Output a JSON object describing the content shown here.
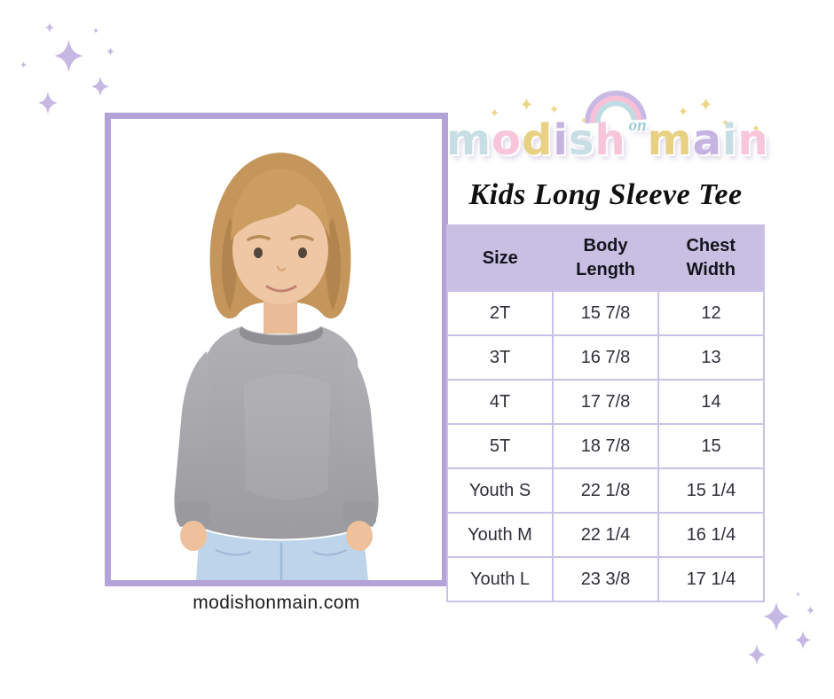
{
  "page": {
    "background": "#ffffff",
    "website": "modishonmain.com"
  },
  "theme": {
    "frame": "#b3a3d8",
    "header_bg": "#c8bfe3",
    "cell_border": "#cac1e6",
    "sparkle": "#c5b9e4",
    "gold": "#ecd584",
    "rainbow1": "#c9b8e4",
    "rainbow2": "#f7bfd8",
    "rainbow3": "#bfdce2",
    "heading_text": "#15151f",
    "cell_text": "#2f2f38"
  },
  "brand": {
    "name": "modish on main",
    "word1_letters": [
      {
        "char": "m",
        "color": "#c7dfe4"
      },
      {
        "char": "o",
        "color": "#f8c6da"
      },
      {
        "char": "d",
        "color": "#e8d183"
      },
      {
        "char": "i",
        "color": "#c5b3e2"
      },
      {
        "char": "s",
        "color": "#c7dfe4"
      },
      {
        "char": "h",
        "color": "#f8c6da"
      }
    ],
    "on_label": "on",
    "word2_letters": [
      {
        "char": "m",
        "color": "#e8d183"
      },
      {
        "char": "a",
        "color": "#c5b3e2"
      },
      {
        "char": "i",
        "color": "#c7dfe4"
      },
      {
        "char": "n",
        "color": "#f8c6da"
      }
    ],
    "subtitle": "Kids Long Sleeve Tee"
  },
  "photo": {
    "description": "Child model with blond hair wearing a heather gray long sleeve tee and light blue jeans",
    "shirt_color": "#a6a6aa",
    "jeans_color": "#bdd4ea"
  },
  "size_table": {
    "columns": [
      "Size",
      "Body Length",
      "Chest Width"
    ],
    "rows": [
      [
        "2T",
        "15 7/8",
        "12"
      ],
      [
        "3T",
        "16 7/8",
        "13"
      ],
      [
        "4T",
        "17 7/8",
        "14"
      ],
      [
        "5T",
        "18 7/8",
        "15"
      ],
      [
        "Youth S",
        "22 1/8",
        "15 1/4"
      ],
      [
        "Youth M",
        "22 1/4",
        "16 1/4"
      ],
      [
        "Youth L",
        "23 3/8",
        "17 1/4"
      ]
    ]
  },
  "icons": {
    "sparkle": "four-point-star",
    "rainbow": "three-arc-rainbow"
  }
}
